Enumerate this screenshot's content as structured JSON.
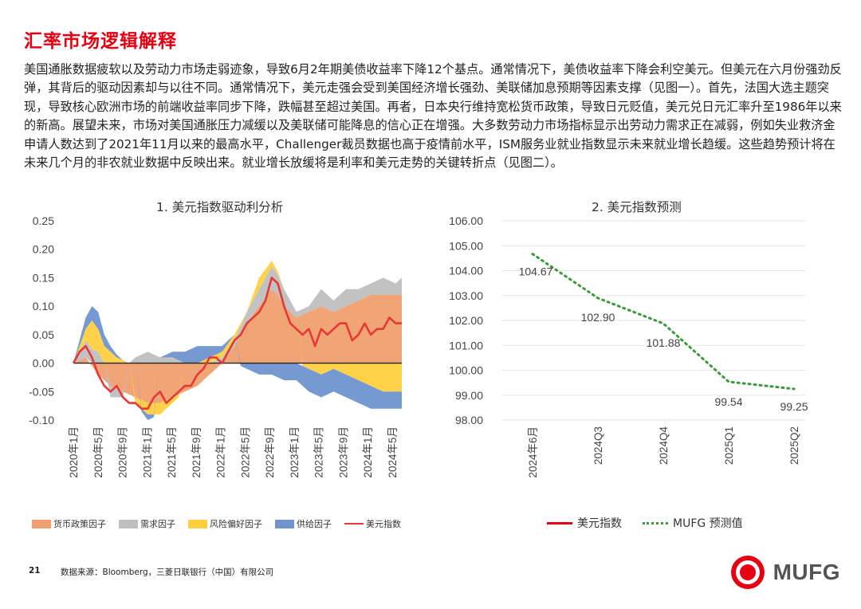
{
  "page": {
    "title": "汇率市场逻辑解释",
    "paragraph": "美国通胀数据疲软以及劳动力市场走弱迹象，导致6月2年期美债收益率下降12个基点。通常情况下，美债收益率下降会利空美元。但美元在六月份强劲反弹，其背后的驱动因素却与以往不同。通常情况下，美元走强会受到美国经济增长强劲、美联储加息预期等因素支撑（见图一）。首先，法国大选主题突现，导致核心欧洲市场的前端收益率同步下降，跌幅甚至超过美国。再者，日本央行维持宽松货币政策，导致日元贬值，美元兑日元汇率升至1986年以来的新高。展望未来，市场对美国通胀压力减缓以及美联储可能降息的信心正在增强。大多数劳动力市场指标显示出劳动力需求正在减弱，例如失业救济金申请人数达到了2021年11月以来的最高水平，Challenger裁员数据也高于疫情前水平，ISM服务业就业指数显示未来就业增长趋缓。这些趋势预计将在未来几个月的非农就业数据中反映出来。就业增长放缓将是利率和美元走势的关键转折点（见图二）。",
    "page_number": "21",
    "source": "数据来源：Bloomberg，三菱日联银行（中国）有限公司",
    "logo_text": "MUFG"
  },
  "colors": {
    "brand_red": "#e60012",
    "monetary": "#f0a070",
    "demand": "#bfbfbf",
    "risk": "#ffd040",
    "supply": "#7094d0",
    "usd_line": "#e53935",
    "forecast": "#3a9a3a"
  },
  "chart_data": [
    {
      "type": "area",
      "title": "1. 美元指数驱动利分析",
      "ylim": [
        -0.1,
        0.25
      ],
      "y_ticks": [
        "0.25",
        "0.20",
        "0.15",
        "0.10",
        "0.05",
        "0.00",
        "-0.05",
        "-0.10"
      ],
      "x_range": [
        "2020-01",
        "2024-06"
      ],
      "x_ticks": [
        "2020年1月",
        "2020年5月",
        "2020年9月",
        "2021年1月",
        "2021年5月",
        "2021年9月",
        "2022年1月",
        "2022年5月",
        "2022年9月",
        "2023年1月",
        "2023年5月",
        "2023年9月",
        "2024年1月",
        "2024年5月"
      ],
      "legend_position": "bottom",
      "series": [
        {
          "name": "货币政策因子",
          "kind": "stacked-area",
          "anchors": [
            [
              0,
              0.0
            ],
            [
              2,
              0.01
            ],
            [
              4,
              -0.02
            ],
            [
              6,
              -0.04
            ],
            [
              8,
              -0.05
            ],
            [
              10,
              -0.06
            ],
            [
              12,
              -0.07
            ],
            [
              14,
              -0.07
            ],
            [
              16,
              -0.06
            ],
            [
              18,
              -0.05
            ],
            [
              20,
              -0.04
            ],
            [
              22,
              -0.02
            ],
            [
              24,
              0.0
            ],
            [
              26,
              0.03
            ],
            [
              28,
              0.07
            ],
            [
              30,
              0.1
            ],
            [
              32,
              0.13
            ],
            [
              33,
              0.12
            ],
            [
              34,
              0.1
            ],
            [
              36,
              0.08
            ],
            [
              38,
              0.09
            ],
            [
              40,
              0.1
            ],
            [
              42,
              0.09
            ],
            [
              44,
              0.1
            ],
            [
              46,
              0.11
            ],
            [
              48,
              0.12
            ],
            [
              50,
              0.12
            ],
            [
              52,
              0.12
            ],
            [
              53,
              0.12
            ]
          ]
        },
        {
          "name": "需求因子",
          "kind": "stacked-area",
          "anchors": [
            [
              0,
              0.0
            ],
            [
              2,
              0.03
            ],
            [
              4,
              0.02
            ],
            [
              6,
              -0.02
            ],
            [
              8,
              -0.01
            ],
            [
              10,
              0.01
            ],
            [
              12,
              0.02
            ],
            [
              14,
              0.01
            ],
            [
              16,
              0.01
            ],
            [
              18,
              0.0
            ],
            [
              20,
              0.0
            ],
            [
              22,
              0.0
            ],
            [
              24,
              0.01
            ],
            [
              26,
              0.01
            ],
            [
              28,
              0.02
            ],
            [
              30,
              0.03
            ],
            [
              32,
              0.04
            ],
            [
              34,
              0.03
            ],
            [
              36,
              0.01
            ],
            [
              38,
              0.01
            ],
            [
              40,
              0.03
            ],
            [
              42,
              0.02
            ],
            [
              44,
              0.03
            ],
            [
              46,
              0.02
            ],
            [
              48,
              0.02
            ],
            [
              50,
              0.03
            ],
            [
              52,
              0.02
            ],
            [
              53,
              0.03
            ]
          ]
        },
        {
          "name": "风险偏好因子",
          "kind": "stacked-area",
          "anchors": [
            [
              0,
              0.0
            ],
            [
              2,
              0.02
            ],
            [
              3,
              0.05
            ],
            [
              5,
              0.03
            ],
            [
              7,
              0.01
            ],
            [
              9,
              0.0
            ],
            [
              10,
              -0.01
            ],
            [
              12,
              -0.02
            ],
            [
              14,
              -0.02
            ],
            [
              16,
              -0.01
            ],
            [
              18,
              0.0
            ],
            [
              20,
              0.0
            ],
            [
              22,
              0.01
            ],
            [
              24,
              0.01
            ],
            [
              26,
              0.01
            ],
            [
              28,
              0.0
            ],
            [
              30,
              0.02
            ],
            [
              32,
              0.01
            ],
            [
              34,
              0.0
            ],
            [
              36,
              0.0
            ],
            [
              38,
              -0.01
            ],
            [
              40,
              -0.02
            ],
            [
              42,
              -0.01
            ],
            [
              44,
              -0.02
            ],
            [
              46,
              -0.03
            ],
            [
              48,
              -0.04
            ],
            [
              50,
              -0.05
            ],
            [
              52,
              -0.05
            ],
            [
              53,
              -0.05
            ]
          ]
        },
        {
          "name": "供给因子",
          "kind": "stacked-area",
          "anchors": [
            [
              0,
              0.0
            ],
            [
              2,
              0.02
            ],
            [
              4,
              0.03
            ],
            [
              6,
              0.01
            ],
            [
              8,
              0.0
            ],
            [
              10,
              0.0
            ],
            [
              12,
              -0.01
            ],
            [
              14,
              0.0
            ],
            [
              16,
              0.01
            ],
            [
              18,
              0.02
            ],
            [
              20,
              0.03
            ],
            [
              22,
              0.02
            ],
            [
              24,
              0.01
            ],
            [
              26,
              0.0
            ],
            [
              28,
              -0.01
            ],
            [
              30,
              -0.02
            ],
            [
              32,
              -0.02
            ],
            [
              34,
              -0.03
            ],
            [
              36,
              -0.03
            ],
            [
              38,
              -0.04
            ],
            [
              40,
              -0.04
            ],
            [
              42,
              -0.04
            ],
            [
              44,
              -0.04
            ],
            [
              46,
              -0.04
            ],
            [
              48,
              -0.04
            ],
            [
              50,
              -0.03
            ],
            [
              52,
              -0.03
            ],
            [
              53,
              -0.03
            ]
          ]
        },
        {
          "name": "美元指数",
          "kind": "line",
          "anchors": [
            [
              0,
              0.0
            ],
            [
              1,
              0.02
            ],
            [
              2,
              0.03
            ],
            [
              3,
              0.01
            ],
            [
              4,
              -0.02
            ],
            [
              5,
              -0.04
            ],
            [
              6,
              -0.05
            ],
            [
              7,
              -0.04
            ],
            [
              8,
              -0.06
            ],
            [
              9,
              -0.07
            ],
            [
              10,
              -0.07
            ],
            [
              11,
              -0.08
            ],
            [
              12,
              -0.08
            ],
            [
              13,
              -0.06
            ],
            [
              14,
              -0.05
            ],
            [
              15,
              -0.07
            ],
            [
              16,
              -0.06
            ],
            [
              17,
              -0.05
            ],
            [
              18,
              -0.04
            ],
            [
              19,
              -0.04
            ],
            [
              20,
              -0.02
            ],
            [
              21,
              -0.01
            ],
            [
              22,
              0.01
            ],
            [
              23,
              0.01
            ],
            [
              24,
              0.0
            ],
            [
              25,
              0.02
            ],
            [
              26,
              0.04
            ],
            [
              27,
              0.05
            ],
            [
              28,
              0.07
            ],
            [
              29,
              0.08
            ],
            [
              30,
              0.09
            ],
            [
              31,
              0.11
            ],
            [
              32,
              0.15
            ],
            [
              33,
              0.14
            ],
            [
              34,
              0.1
            ],
            [
              35,
              0.07
            ],
            [
              36,
              0.06
            ],
            [
              37,
              0.05
            ],
            [
              38,
              0.06
            ],
            [
              39,
              0.03
            ],
            [
              40,
              0.06
            ],
            [
              41,
              0.05
            ],
            [
              42,
              0.06
            ],
            [
              43,
              0.07
            ],
            [
              44,
              0.07
            ],
            [
              45,
              0.04
            ],
            [
              46,
              0.05
            ],
            [
              47,
              0.07
            ],
            [
              48,
              0.05
            ],
            [
              49,
              0.06
            ],
            [
              50,
              0.06
            ],
            [
              51,
              0.08
            ],
            [
              52,
              0.07
            ],
            [
              53,
              0.07
            ]
          ]
        }
      ]
    },
    {
      "type": "line",
      "title": "2. 美元指数预测",
      "ylim": [
        98,
        106
      ],
      "y_ticks": [
        "106.00",
        "105.00",
        "104.00",
        "103.00",
        "102.00",
        "101.00",
        "100.00",
        "99.00",
        "98.00"
      ],
      "categories": [
        "2024年6月",
        "2024Q3",
        "2024Q4",
        "2025Q1",
        "2025Q2"
      ],
      "series": [
        {
          "name": "MUFG 预测值",
          "values": [
            104.67,
            102.9,
            101.88,
            99.54,
            99.25
          ]
        }
      ],
      "data_labels": [
        "104.67",
        "102.90",
        "101.88",
        "99.54",
        "99.25"
      ],
      "legend": [
        "美元指数",
        "MUFG 预测值"
      ],
      "legend_position": "bottom"
    }
  ]
}
